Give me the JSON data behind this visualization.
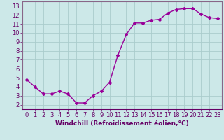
{
  "x": [
    0,
    1,
    2,
    3,
    4,
    5,
    6,
    7,
    8,
    9,
    10,
    11,
    12,
    13,
    14,
    15,
    16,
    17,
    18,
    19,
    20,
    21,
    22,
    23
  ],
  "y": [
    4.8,
    4.0,
    3.2,
    3.2,
    3.5,
    3.2,
    2.2,
    2.2,
    3.0,
    3.5,
    4.5,
    7.5,
    9.8,
    11.1,
    11.1,
    11.4,
    11.5,
    12.2,
    12.6,
    12.7,
    12.7,
    12.1,
    11.7,
    11.6
  ],
  "line_color": "#990099",
  "marker": "D",
  "marker_size": 2.0,
  "bg_color": "#cce8e8",
  "grid_color": "#aacccc",
  "xlabel": "Windchill (Refroidissement éolien,°C)",
  "xlim": [
    -0.5,
    23.5
  ],
  "ylim": [
    1.5,
    13.5
  ],
  "xticks": [
    0,
    1,
    2,
    3,
    4,
    5,
    6,
    7,
    8,
    9,
    10,
    11,
    12,
    13,
    14,
    15,
    16,
    17,
    18,
    19,
    20,
    21,
    22,
    23
  ],
  "yticks": [
    2,
    3,
    4,
    5,
    6,
    7,
    8,
    9,
    10,
    11,
    12,
    13
  ],
  "xlabel_fontsize": 6.5,
  "tick_fontsize": 6.0,
  "line_width": 1.0,
  "text_color": "#660066",
  "spine_color": "#886688"
}
